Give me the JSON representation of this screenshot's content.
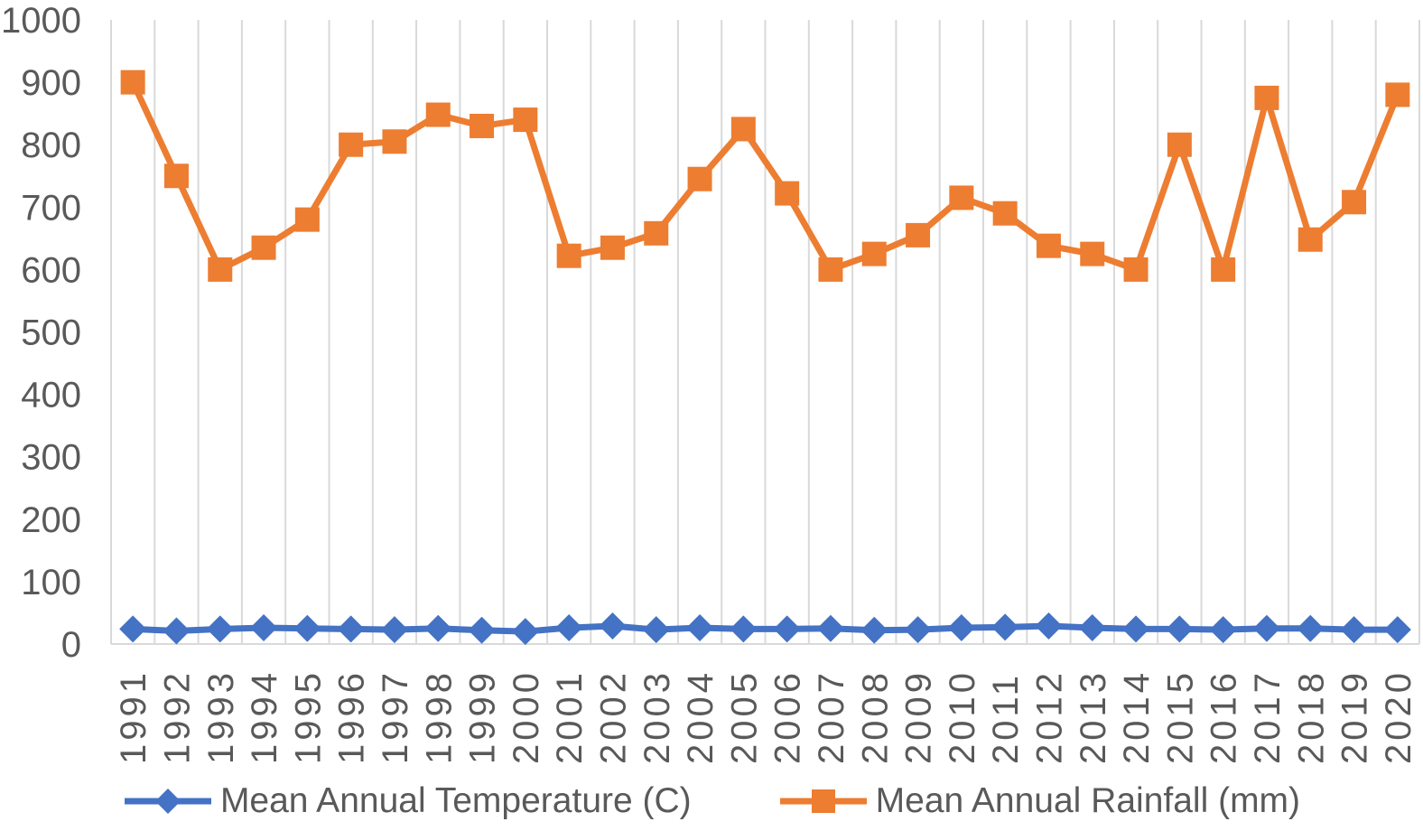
{
  "chart_data": {
    "type": "line",
    "title": "",
    "xlabel": "",
    "ylabel": "",
    "categories": [
      "1991",
      "1992",
      "1993",
      "1994",
      "1995",
      "1996",
      "1997",
      "1998",
      "1999",
      "2000",
      "2001",
      "2002",
      "2003",
      "2004",
      "2005",
      "2006",
      "2007",
      "2008",
      "2009",
      "2010",
      "2011",
      "2012",
      "2013",
      "2014",
      "2015",
      "2016",
      "2017",
      "2018",
      "2019",
      "2020"
    ],
    "series": [
      {
        "name": "Mean Annual Temperature (C)",
        "color": "#4472C4",
        "marker": "diamond",
        "values": [
          24,
          21,
          24,
          26,
          25,
          24,
          23,
          25,
          22,
          20,
          26,
          29,
          23,
          26,
          24,
          24,
          25,
          22,
          23,
          26,
          27,
          29,
          26,
          24,
          24,
          23,
          25,
          25,
          23,
          23
        ]
      },
      {
        "name": "Mean Annual Rainfall (mm)",
        "color": "#ED7D31",
        "marker": "square",
        "values": [
          900,
          750,
          600,
          635,
          680,
          800,
          805,
          848,
          830,
          840,
          622,
          635,
          658,
          745,
          825,
          722,
          600,
          625,
          655,
          715,
          690,
          638,
          625,
          600,
          800,
          600,
          875,
          648,
          708,
          880
        ]
      }
    ],
    "ylim": [
      0,
      1000
    ],
    "y_ticks": [
      0,
      100,
      200,
      300,
      400,
      500,
      600,
      700,
      800,
      900,
      1000
    ],
    "grid": "vertical-only",
    "legend_position": "bottom"
  },
  "legend": {
    "temperature_label": "Mean Annual Temperature (C)",
    "rainfall_label": "Mean Annual Rainfall (mm)"
  },
  "colors": {
    "temperature": "#4472C4",
    "rainfall": "#ED7D31",
    "gridline": "#D9D9D9",
    "axis_line": "#D9D9D9",
    "axis_text": "#595959"
  }
}
